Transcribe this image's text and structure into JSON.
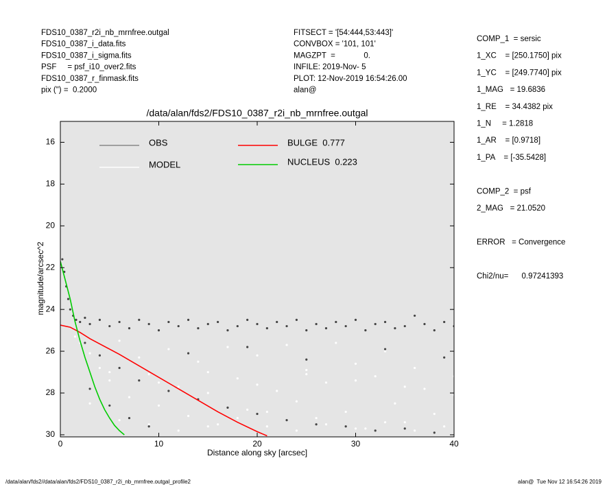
{
  "header": {
    "left": [
      "FDS10_0387_r2i_nb_mrnfree.outgal",
      "FDS10_0387_i_data.fits",
      "FDS10_0387_i_sigma.fits",
      "PSF     = psf_i10_over2.fits",
      "FDS10_0387_r_finmask.fits",
      "pix (\") =  0.2000"
    ],
    "center": [
      "FITSECT = '[54:444,53:443]'",
      "CONVBOX = '101, 101'",
      "MAGZPT  =             0.",
      "INFILE: 2019-Nov- 5",
      "PLOT: 12-Nov-2019 16:54:26.00",
      "alan@"
    ],
    "right": [
      "COMP_1  = sersic",
      "1_XC    = [250.1750] pix",
      "1_YC    = [249.7740] pix",
      "1_MAG   = 19.6836",
      "1_RE    = 34.4382 pix",
      "1_N     = 1.2818",
      "1_AR    = [0.9718]",
      "1_PA    = [-35.5428]",
      "",
      "COMP_2  = psf",
      "2_MAG   = 21.0520",
      "",
      "ERROR   = Convergence",
      "",
      "Chi2/nu=      0.97241393"
    ]
  },
  "footer": {
    "left": "/data/alan/fds2//data/alan/fds2/FDS10_0387_r2i_nb_mrnfree.outgal_profile2",
    "right": "alan@  Tue Nov 12 16:54:26 2019"
  },
  "chart_data": {
    "type": "scatter",
    "title": "/data/alan/fds2/FDS10_0387_r2i_nb_mrnfree.outgal",
    "x_label": "Distance along sky [arcsec]",
    "y_label": "magnitude/arcsec^2",
    "xlim": [
      0,
      40
    ],
    "ylim": [
      30.1,
      15
    ],
    "xticks": [
      0,
      10,
      20,
      30,
      40
    ],
    "yticks": [
      16,
      18,
      20,
      22,
      24,
      26,
      28,
      30
    ],
    "background": "#e5e5e5",
    "series": [
      {
        "name": "MODEL",
        "color": "#ffffff",
        "kind": "points",
        "x": [
          1.5,
          2,
          3,
          4,
          5,
          6,
          7,
          8,
          9,
          10,
          11,
          12,
          13,
          14,
          15,
          16,
          17,
          18,
          19,
          20,
          21,
          22,
          23,
          24,
          25,
          26,
          27,
          28,
          29,
          30,
          31,
          32,
          33,
          34,
          35,
          36,
          37,
          38,
          39,
          40,
          3,
          6,
          9,
          12,
          15,
          18,
          21,
          24,
          27,
          30,
          33,
          36,
          39,
          5,
          10,
          15,
          20,
          25,
          30,
          35,
          40
        ],
        "values": [
          25.3,
          25.6,
          26.1,
          26.8,
          27.4,
          25.5,
          28.2,
          26.3,
          27.1,
          28.6,
          25.9,
          27.7,
          29.1,
          26.5,
          28.0,
          29.5,
          25.8,
          27.3,
          28.8,
          26.2,
          29.6,
          27.9,
          25.7,
          28.4,
          26.9,
          29.2,
          27.5,
          25.6,
          28.9,
          26.6,
          29.7,
          27.2,
          26.0,
          28.5,
          29.4,
          26.8,
          27.8,
          29.0,
          26.3,
          28.1,
          28.5,
          29.3,
          29.5,
          29.8,
          29.6,
          29.2,
          28.9,
          29.8,
          29.5,
          29.7,
          29.4,
          29.8,
          29.6,
          27.0,
          27.5,
          27.0,
          27.6,
          27.1,
          27.4,
          27.7,
          27.2
        ]
      },
      {
        "name": "OBS",
        "color": "#444444",
        "kind": "points",
        "x": [
          0.2,
          0.4,
          0.6,
          0.8,
          1.0,
          1.3,
          1.6,
          2,
          2.5,
          3,
          4,
          5,
          6,
          7,
          8,
          9,
          10,
          11,
          12,
          13,
          14,
          15,
          16,
          17,
          18,
          19,
          20,
          21,
          22,
          23,
          24,
          25,
          26,
          27,
          28,
          29,
          30,
          31,
          32,
          33,
          34,
          35,
          36,
          37,
          38,
          39,
          40,
          2.5,
          4,
          6,
          8,
          11,
          14,
          17,
          20,
          23,
          26,
          29,
          32,
          35,
          38,
          3,
          5,
          7,
          9,
          13,
          19,
          25,
          33,
          39
        ],
        "values": [
          21.6,
          22.2,
          22.9,
          23.5,
          24.0,
          24.3,
          24.5,
          24.6,
          24.4,
          24.7,
          24.5,
          24.8,
          24.6,
          24.9,
          24.5,
          24.7,
          25.0,
          24.6,
          24.8,
          24.5,
          24.9,
          24.7,
          24.6,
          25.0,
          24.8,
          24.5,
          24.7,
          24.9,
          24.6,
          24.8,
          24.5,
          25.0,
          24.7,
          24.9,
          24.6,
          24.8,
          24.5,
          25.0,
          24.7,
          24.6,
          24.9,
          24.8,
          24.3,
          24.7,
          25.0,
          24.6,
          24.8,
          25.6,
          26.2,
          26.8,
          27.4,
          27.9,
          28.3,
          28.7,
          29.0,
          29.3,
          29.5,
          29.6,
          29.8,
          29.7,
          29.9,
          27.8,
          28.6,
          29.2,
          29.6,
          26.1,
          25.8,
          26.4,
          25.9,
          26.3
        ]
      },
      {
        "name": "BULGE  0.777",
        "color": "#ff0000",
        "kind": "line",
        "x": [
          0,
          1,
          2,
          3,
          4,
          5,
          6,
          8,
          10,
          12,
          14,
          16,
          18,
          20,
          21
        ],
        "values": [
          24.75,
          24.85,
          25.1,
          25.4,
          25.65,
          25.9,
          26.15,
          26.7,
          27.25,
          27.8,
          28.35,
          28.9,
          29.4,
          29.85,
          30.05
        ]
      },
      {
        "name": "NUCLEUS  0.223",
        "color": "#00cc00",
        "kind": "line",
        "x": [
          0,
          0.5,
          1,
          1.5,
          2,
          2.5,
          3,
          3.5,
          4,
          4.5,
          5,
          5.5,
          6,
          6.5
        ],
        "values": [
          21.7,
          22.6,
          23.5,
          24.6,
          25.5,
          26.3,
          27.0,
          27.7,
          28.3,
          28.8,
          29.2,
          29.55,
          29.8,
          30.0
        ]
      }
    ]
  }
}
